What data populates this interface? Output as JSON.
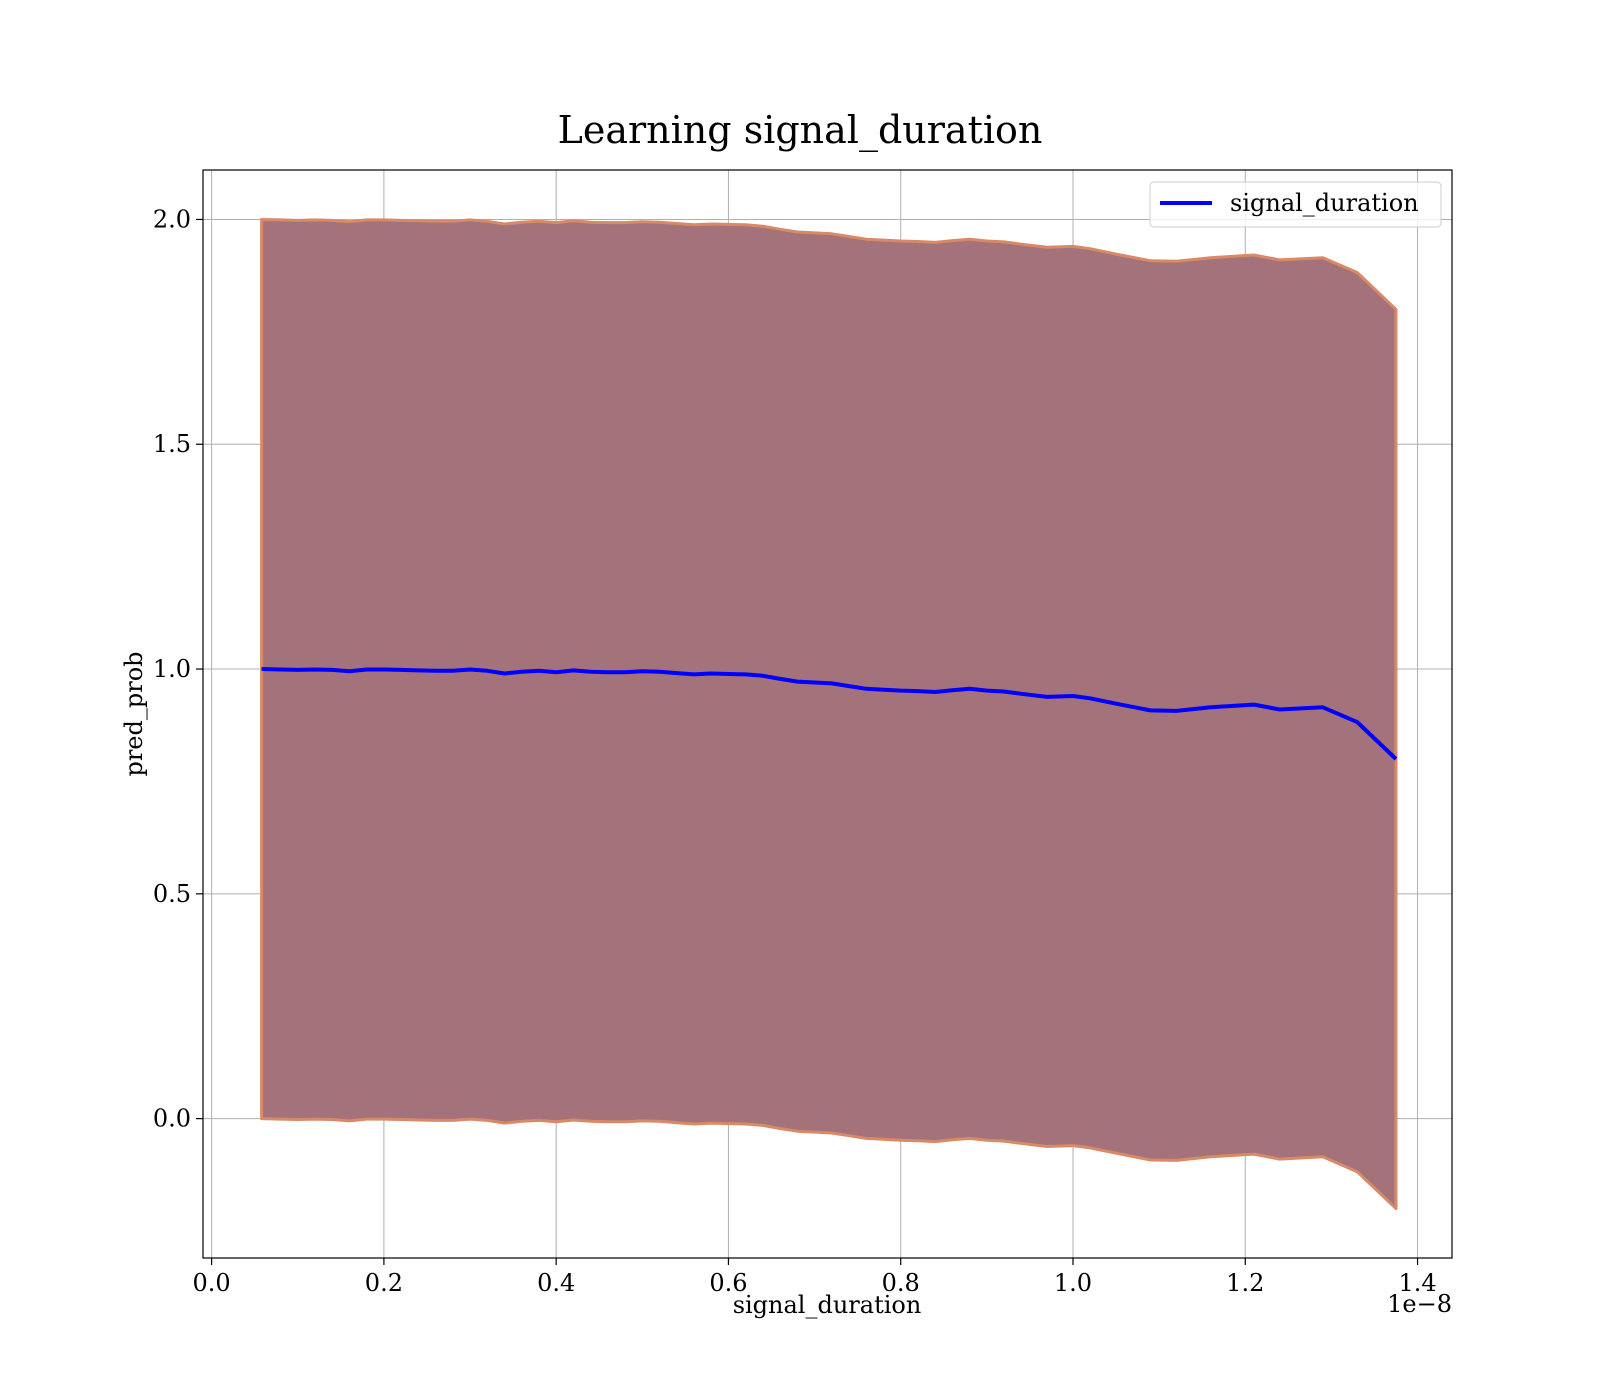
{
  "chart_data": {
    "type": "line",
    "title": "Learning signal_duration",
    "xlabel": "signal_duration",
    "ylabel": "pred_prob",
    "x_offset_label": "1e−8",
    "xlim": [
      -0.01,
      1.44
    ],
    "ylim": [
      -0.31,
      2.11
    ],
    "grid": true,
    "legend": {
      "placement": "top-right",
      "entries": [
        "signal_duration"
      ]
    },
    "x_ticks": [
      0.0,
      0.2,
      0.4,
      0.6,
      0.8,
      1.0,
      1.2,
      1.4
    ],
    "x_tick_labels": [
      "0.0",
      "0.2",
      "0.4",
      "0.6",
      "0.8",
      "1.0",
      "1.2",
      "1.4"
    ],
    "y_ticks": [
      0.0,
      0.5,
      1.0,
      1.5,
      2.0
    ],
    "y_tick_labels": [
      "0.0",
      "0.5",
      "1.0",
      "1.5",
      "2.0"
    ],
    "series": [
      {
        "name": "signal_duration",
        "color": "#0000ff",
        "x": [
          0.058,
          0.08,
          0.1,
          0.12,
          0.14,
          0.16,
          0.18,
          0.2,
          0.22,
          0.24,
          0.26,
          0.28,
          0.3,
          0.32,
          0.34,
          0.36,
          0.38,
          0.4,
          0.42,
          0.44,
          0.46,
          0.48,
          0.5,
          0.52,
          0.54,
          0.56,
          0.58,
          0.6,
          0.62,
          0.64,
          0.66,
          0.68,
          0.7,
          0.72,
          0.74,
          0.76,
          0.78,
          0.8,
          0.82,
          0.84,
          0.86,
          0.88,
          0.9,
          0.92,
          0.94,
          0.97,
          1.0,
          1.02,
          1.05,
          1.09,
          1.12,
          1.16,
          1.21,
          1.24,
          1.29,
          1.33,
          1.375
        ],
        "y": [
          1.0,
          0.999,
          0.998,
          0.999,
          0.998,
          0.995,
          0.999,
          0.999,
          0.998,
          0.997,
          0.996,
          0.996,
          0.999,
          0.996,
          0.99,
          0.994,
          0.996,
          0.993,
          0.997,
          0.994,
          0.993,
          0.993,
          0.995,
          0.994,
          0.991,
          0.988,
          0.99,
          0.989,
          0.988,
          0.985,
          0.978,
          0.972,
          0.97,
          0.968,
          0.962,
          0.956,
          0.954,
          0.952,
          0.951,
          0.949,
          0.953,
          0.956,
          0.952,
          0.95,
          0.945,
          0.938,
          0.94,
          0.935,
          0.923,
          0.908,
          0.907,
          0.915,
          0.921,
          0.91,
          0.915,
          0.882,
          0.8
        ]
      }
    ],
    "band": {
      "fill_color": "#a3727a",
      "edge_color": "#d88a66",
      "upper": [
        2.0,
        1.999,
        1.998,
        1.999,
        1.998,
        1.995,
        1.999,
        1.999,
        1.998,
        1.997,
        1.996,
        1.996,
        1.999,
        1.996,
        1.99,
        1.994,
        1.996,
        1.993,
        1.997,
        1.994,
        1.993,
        1.993,
        1.995,
        1.994,
        1.991,
        1.988,
        1.99,
        1.989,
        1.988,
        1.985,
        1.978,
        1.972,
        1.97,
        1.968,
        1.962,
        1.956,
        1.954,
        1.952,
        1.951,
        1.949,
        1.953,
        1.956,
        1.952,
        1.95,
        1.945,
        1.938,
        1.94,
        1.935,
        1.923,
        1.908,
        1.907,
        1.915,
        1.921,
        1.91,
        1.915,
        1.882,
        1.8
      ],
      "lower": [
        0.0,
        -0.001,
        -0.002,
        -0.001,
        -0.002,
        -0.005,
        -0.001,
        -0.001,
        -0.002,
        -0.003,
        -0.004,
        -0.004,
        -0.001,
        -0.004,
        -0.01,
        -0.006,
        -0.004,
        -0.007,
        -0.003,
        -0.006,
        -0.007,
        -0.007,
        -0.005,
        -0.006,
        -0.009,
        -0.012,
        -0.01,
        -0.011,
        -0.012,
        -0.015,
        -0.022,
        -0.028,
        -0.03,
        -0.032,
        -0.038,
        -0.044,
        -0.046,
        -0.048,
        -0.049,
        -0.051,
        -0.047,
        -0.044,
        -0.048,
        -0.05,
        -0.055,
        -0.062,
        -0.06,
        -0.065,
        -0.077,
        -0.092,
        -0.093,
        -0.085,
        -0.079,
        -0.09,
        -0.085,
        -0.118,
        -0.2
      ]
    }
  }
}
